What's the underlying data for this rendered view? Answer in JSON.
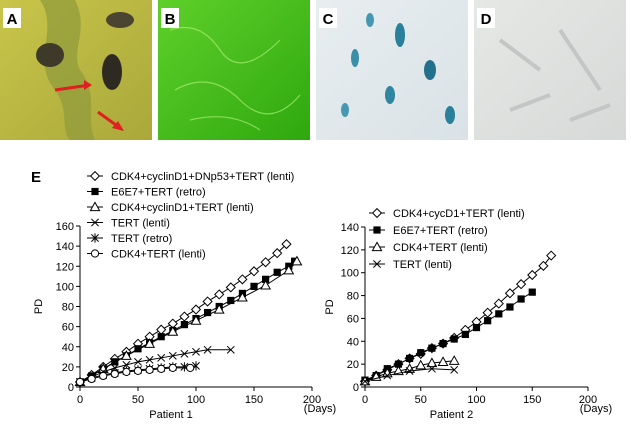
{
  "panels": [
    {
      "label": "A"
    },
    {
      "label": "B"
    },
    {
      "label": "C"
    },
    {
      "label": "D"
    }
  ],
  "figure_label": "E",
  "chart_data": [
    {
      "type": "line",
      "x_label": "Patient 1",
      "x_unit": "(Days)",
      "y_label": "PD",
      "xlim": [
        0,
        200
      ],
      "xticks": [
        0,
        50,
        100,
        150,
        200
      ],
      "ylim": [
        0,
        160
      ],
      "yticks": [
        0,
        20,
        40,
        60,
        80,
        100,
        120,
        140,
        160
      ],
      "series": [
        {
          "name": "CDK4+cyclinD1+DNp53+TERT (lenti)",
          "color": "#000000",
          "marker": "diamond",
          "x": [
            0,
            10,
            20,
            30,
            40,
            50,
            60,
            70,
            80,
            90,
            100,
            110,
            120,
            130,
            140,
            150,
            160,
            170,
            178
          ],
          "values": [
            5,
            12,
            20,
            28,
            35,
            43,
            50,
            57,
            63,
            70,
            77,
            85,
            92,
            99,
            107,
            115,
            124,
            133,
            142
          ]
        },
        {
          "name": "E6E7+TERT (retro)",
          "color": "#000000",
          "marker": "square",
          "x": [
            0,
            10,
            20,
            30,
            40,
            50,
            60,
            70,
            80,
            90,
            100,
            110,
            120,
            130,
            140,
            150,
            160,
            170,
            180,
            185
          ],
          "values": [
            5,
            11,
            18,
            25,
            31,
            38,
            44,
            50,
            56,
            62,
            68,
            74,
            80,
            86,
            93,
            100,
            107,
            114,
            120,
            125
          ]
        },
        {
          "name": "CDK4+cyclinD1+TERT (lenti)",
          "color": "#000000",
          "marker": "triangle",
          "x": [
            0,
            20,
            40,
            60,
            80,
            100,
            120,
            140,
            160,
            180,
            187
          ],
          "values": [
            5,
            18,
            31,
            43,
            55,
            66,
            77,
            89,
            101,
            116,
            125
          ]
        },
        {
          "name": "TERT (lenti)",
          "color": "#000000",
          "marker": "x",
          "x": [
            0,
            10,
            20,
            30,
            40,
            50,
            60,
            70,
            80,
            90,
            100,
            110,
            130
          ],
          "values": [
            5,
            10,
            15,
            19,
            22,
            25,
            27,
            29,
            31,
            33,
            35,
            37,
            37
          ]
        },
        {
          "name": "TERT (retro)",
          "color": "#000000",
          "marker": "asterisk",
          "x": [
            0,
            10,
            20,
            30,
            40,
            50,
            60,
            70,
            80,
            90,
            100
          ],
          "values": [
            5,
            9,
            12,
            14,
            16,
            17,
            18,
            19,
            20,
            20,
            21
          ]
        },
        {
          "name": "CDK4+TERT (lenti)",
          "color": "#000000",
          "marker": "circle",
          "x": [
            0,
            10,
            20,
            30,
            40,
            50,
            60,
            70,
            80,
            95
          ],
          "values": [
            5,
            8,
            11,
            13,
            15,
            16,
            17,
            18,
            19,
            19
          ]
        }
      ]
    },
    {
      "type": "line",
      "x_label": "Patient 2",
      "x_unit": "(Days)",
      "y_label": "PD",
      "xlim": [
        0,
        200
      ],
      "xticks": [
        0,
        50,
        100,
        150,
        200
      ],
      "ylim": [
        0,
        140
      ],
      "yticks": [
        0,
        20,
        40,
        60,
        80,
        100,
        120,
        140
      ],
      "series": [
        {
          "name": "CDK4+cycD1+TERT (lenti)",
          "color": "#000000",
          "marker": "diamond",
          "x": [
            0,
            10,
            20,
            30,
            40,
            50,
            60,
            70,
            80,
            90,
            100,
            110,
            120,
            130,
            140,
            150,
            160,
            167
          ],
          "values": [
            5,
            10,
            15,
            20,
            25,
            29,
            34,
            38,
            43,
            50,
            57,
            65,
            73,
            82,
            90,
            98,
            106,
            115
          ]
        },
        {
          "name": "E6E7+TERT (retro)",
          "color": "#000000",
          "marker": "square",
          "x": [
            0,
            10,
            20,
            30,
            40,
            50,
            60,
            70,
            80,
            90,
            100,
            110,
            120,
            130,
            140,
            150
          ],
          "values": [
            6,
            10,
            16,
            20,
            25,
            30,
            34,
            38,
            42,
            46,
            52,
            58,
            64,
            70,
            77,
            83
          ]
        },
        {
          "name": "CDK4+TERT (lenti)",
          "color": "#000000",
          "marker": "triangle",
          "x": [
            0,
            10,
            20,
            30,
            40,
            50,
            60,
            70,
            80
          ],
          "values": [
            5,
            9,
            12,
            14,
            16,
            19,
            21,
            22,
            23
          ]
        },
        {
          "name": "TERT (lenti)",
          "color": "#000000",
          "marker": "x",
          "x": [
            0,
            20,
            40,
            60,
            80
          ],
          "values": [
            5,
            10,
            14,
            16,
            15
          ]
        }
      ]
    }
  ]
}
